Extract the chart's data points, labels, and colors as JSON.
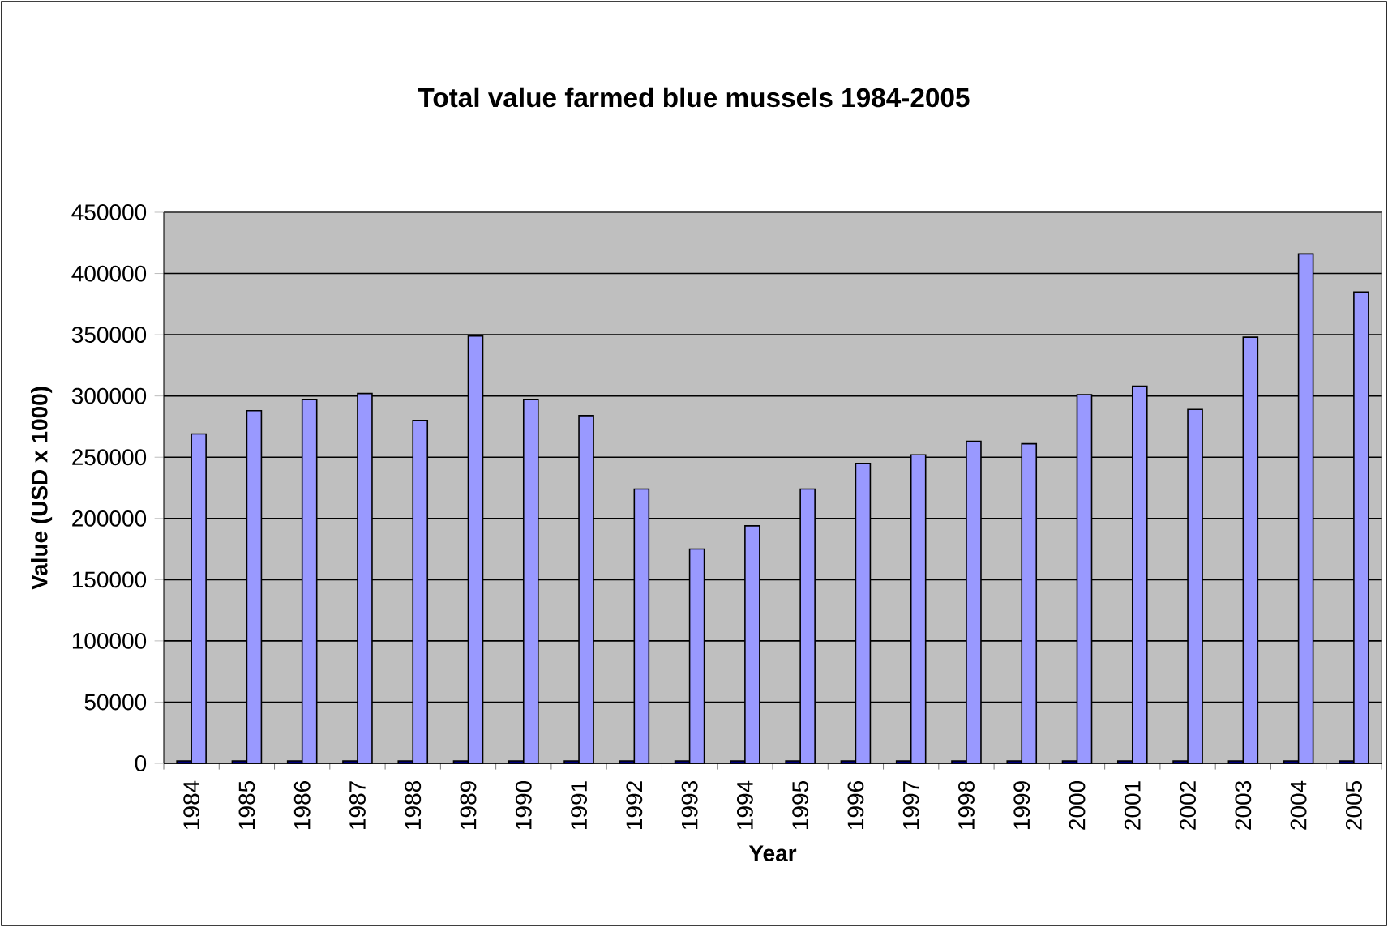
{
  "chart_data": {
    "type": "bar",
    "title": "Total value farmed blue mussels 1984-2005",
    "xlabel": "Year",
    "ylabel": "Value (USD x 1000)",
    "categories": [
      "1984",
      "1985",
      "1986",
      "1987",
      "1988",
      "1989",
      "1990",
      "1991",
      "1992",
      "1993",
      "1994",
      "1995",
      "1996",
      "1997",
      "1998",
      "1999",
      "2000",
      "2001",
      "2002",
      "2003",
      "2004",
      "2005"
    ],
    "series": [
      {
        "color": "#000080",
        "values": [
          2000,
          2000,
          2000,
          2000,
          2000,
          2000,
          2000,
          2000,
          2000,
          2000,
          2000,
          2000,
          2000,
          2000,
          2000,
          2000,
          2000,
          2000,
          2000,
          2000,
          2000,
          2000
        ]
      },
      {
        "color": "#9999ff",
        "values": [
          269000,
          288000,
          297000,
          302000,
          280000,
          349000,
          297000,
          284000,
          224000,
          175000,
          194000,
          224000,
          245000,
          252000,
          263000,
          261000,
          301000,
          308000,
          289000,
          348000,
          416000,
          385000
        ]
      }
    ],
    "ylim": [
      0,
      450000
    ],
    "yticks": [
      0,
      50000,
      100000,
      150000,
      200000,
      250000,
      300000,
      350000,
      400000,
      450000
    ],
    "grid": "y"
  }
}
